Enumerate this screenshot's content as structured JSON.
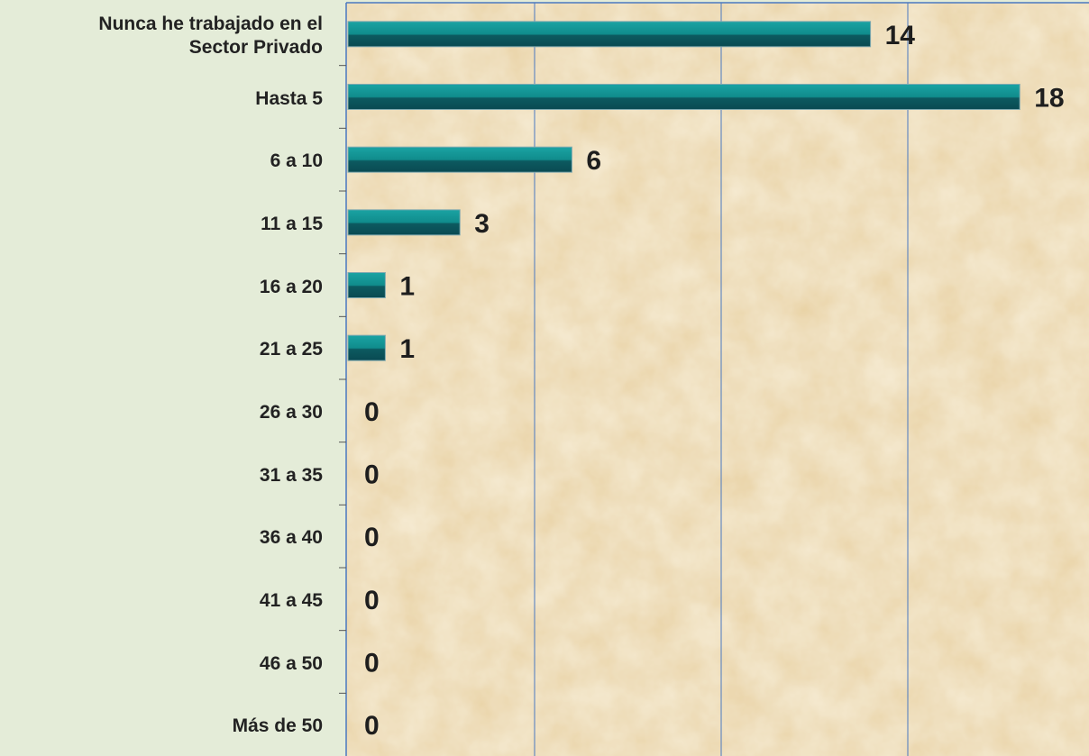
{
  "chart_data": {
    "type": "bar",
    "orientation": "horizontal",
    "categories": [
      "Nunca he trabajado en el\nSector Privado",
      "Hasta 5",
      "6 a 10",
      "11 a 15",
      "16 a 20",
      "21 a 25",
      "26 a 30",
      "31 a 35",
      "36 a 40",
      "41 a 45",
      "46 a 50",
      "Más de 50"
    ],
    "values": [
      14,
      18,
      6,
      3,
      1,
      1,
      0,
      0,
      0,
      0,
      0,
      0
    ],
    "color": "#108c8c",
    "xlim": [
      0,
      20
    ],
    "xticks": [
      0,
      5,
      10,
      15,
      20
    ],
    "grid": true
  }
}
